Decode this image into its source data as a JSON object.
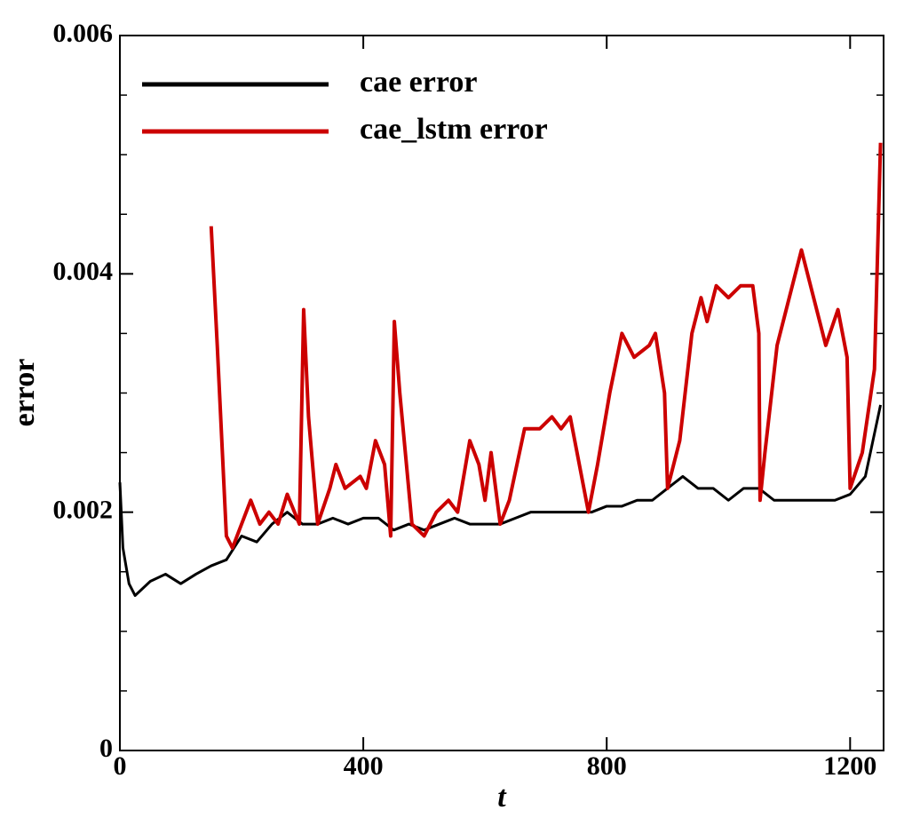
{
  "chart_data": {
    "type": "line",
    "xlabel": "t",
    "ylabel": "error",
    "xlim": [
      0,
      1255
    ],
    "ylim": [
      0,
      0.006
    ],
    "xticks": [
      0,
      400,
      800,
      1200
    ],
    "yticks": [
      0,
      0.002,
      0.004,
      0.006
    ],
    "yticks_minor": [
      0.0005,
      0.001,
      0.0015,
      0.0025,
      0.003,
      0.0035,
      0.0045,
      0.005,
      0.0055
    ],
    "legend": "upper-left",
    "series": [
      {
        "name": "cae error",
        "color": "#000000",
        "x": [
          0,
          5,
          15,
          25,
          50,
          75,
          100,
          125,
          150,
          175,
          200,
          225,
          250,
          275,
          300,
          325,
          350,
          375,
          400,
          425,
          450,
          475,
          500,
          525,
          550,
          575,
          600,
          625,
          650,
          675,
          700,
          725,
          750,
          775,
          800,
          825,
          850,
          875,
          900,
          925,
          950,
          975,
          1000,
          1025,
          1050,
          1075,
          1100,
          1125,
          1150,
          1175,
          1200,
          1225,
          1250
        ],
        "values": [
          0.00225,
          0.0017,
          0.0014,
          0.0013,
          0.00142,
          0.00148,
          0.0014,
          0.00148,
          0.00155,
          0.0016,
          0.0018,
          0.00175,
          0.0019,
          0.002,
          0.0019,
          0.0019,
          0.00195,
          0.0019,
          0.00195,
          0.00195,
          0.00185,
          0.0019,
          0.00185,
          0.0019,
          0.00195,
          0.0019,
          0.0019,
          0.0019,
          0.00195,
          0.002,
          0.002,
          0.002,
          0.002,
          0.002,
          0.00205,
          0.00205,
          0.0021,
          0.0021,
          0.0022,
          0.0023,
          0.0022,
          0.0022,
          0.0021,
          0.0022,
          0.0022,
          0.0021,
          0.0021,
          0.0021,
          0.0021,
          0.0021,
          0.00215,
          0.0023,
          0.0029
        ]
      },
      {
        "name": "cae_lstm error",
        "color": "#cc0000",
        "x": [
          150,
          160,
          175,
          185,
          200,
          215,
          230,
          245,
          260,
          275,
          295,
          302,
          310,
          325,
          345,
          355,
          370,
          395,
          405,
          420,
          435,
          445,
          451,
          460,
          480,
          500,
          520,
          540,
          555,
          575,
          590,
          600,
          610,
          625,
          640,
          665,
          690,
          710,
          725,
          740,
          755,
          770,
          785,
          805,
          825,
          845,
          870,
          880,
          895,
          900,
          920,
          940,
          955,
          965,
          980,
          1000,
          1020,
          1040,
          1050,
          1052,
          1060,
          1080,
          1100,
          1120,
          1140,
          1160,
          1180,
          1195,
          1200,
          1220,
          1240,
          1250
        ],
        "values": [
          0.0044,
          0.0034,
          0.0018,
          0.0017,
          0.0019,
          0.0021,
          0.0019,
          0.002,
          0.0019,
          0.00215,
          0.0019,
          0.0037,
          0.0028,
          0.0019,
          0.0022,
          0.0024,
          0.0022,
          0.0023,
          0.0022,
          0.0026,
          0.0024,
          0.0018,
          0.0036,
          0.003,
          0.0019,
          0.0018,
          0.002,
          0.0021,
          0.002,
          0.0026,
          0.0024,
          0.0021,
          0.0025,
          0.0019,
          0.0021,
          0.0027,
          0.0027,
          0.0028,
          0.0027,
          0.0028,
          0.0024,
          0.002,
          0.0024,
          0.003,
          0.0035,
          0.0033,
          0.0034,
          0.0035,
          0.003,
          0.0022,
          0.0026,
          0.0035,
          0.0038,
          0.0036,
          0.0039,
          0.0038,
          0.0039,
          0.0039,
          0.0035,
          0.0021,
          0.0025,
          0.0034,
          0.0038,
          0.0042,
          0.0038,
          0.0034,
          0.0037,
          0.0033,
          0.0022,
          0.0025,
          0.0032,
          0.0051
        ]
      }
    ]
  }
}
